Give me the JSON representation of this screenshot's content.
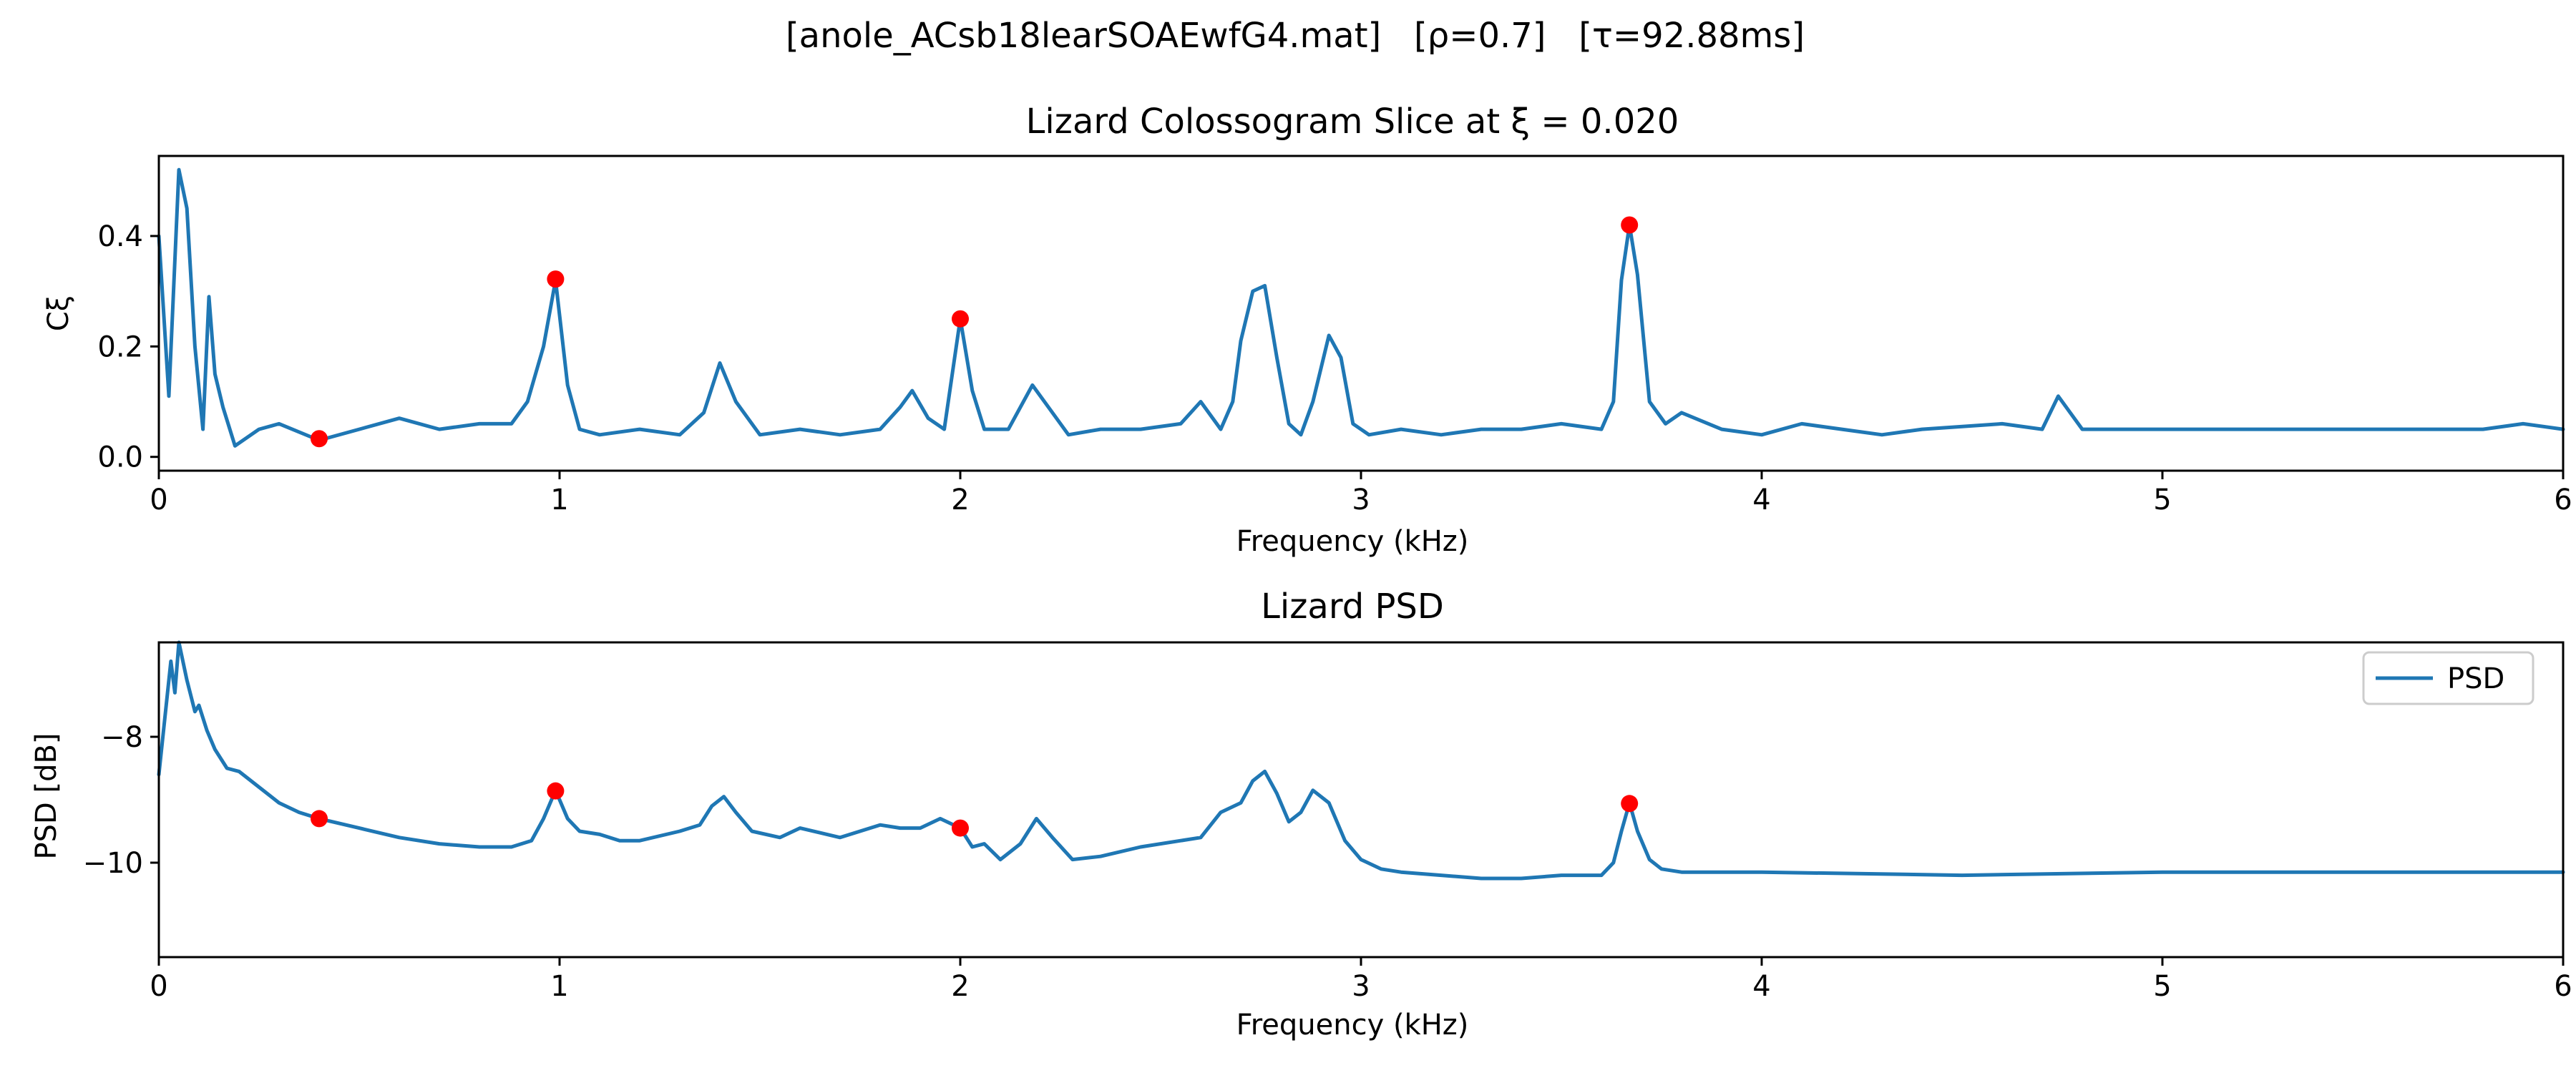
{
  "figure": {
    "suptitle": "[anole_ACsb18learSOAEwfG4.mat]   [ρ=0.7]   [τ=92.88ms]"
  },
  "colors": {
    "line": "#1f77b4",
    "marker": "#ff0000",
    "axes": "#000000",
    "background": "#ffffff"
  },
  "chart_data": [
    {
      "type": "line",
      "title": "Lizard Colossogram Slice at ξ = 0.020",
      "xlabel": "Frequency (kHz)",
      "ylabel": "Cξ",
      "xlim": [
        0,
        6
      ],
      "ylim": [
        -0.025,
        0.545
      ],
      "xticks": [
        0,
        1,
        2,
        3,
        4,
        5,
        6
      ],
      "yticks": [
        0.0,
        0.2,
        0.4
      ],
      "xtick_labels": [
        "0",
        "1",
        "2",
        "3",
        "4",
        "5",
        "6"
      ],
      "ytick_labels": [
        "0.0",
        "0.2",
        "0.4"
      ],
      "grid": false,
      "series": [
        {
          "x": [
            0,
            0.025,
            0.05,
            0.07,
            0.09,
            0.11,
            0.125,
            0.14,
            0.16,
            0.19,
            0.25,
            0.3,
            0.4,
            0.5,
            0.6,
            0.7,
            0.8,
            0.88,
            0.92,
            0.96,
            0.99,
            1.02,
            1.05,
            1.1,
            1.2,
            1.3,
            1.36,
            1.4,
            1.44,
            1.5,
            1.6,
            1.7,
            1.8,
            1.85,
            1.88,
            1.92,
            1.96,
            2.0,
            2.03,
            2.06,
            2.12,
            2.18,
            2.22,
            2.27,
            2.35,
            2.45,
            2.55,
            2.6,
            2.65,
            2.68,
            2.7,
            2.73,
            2.76,
            2.79,
            2.82,
            2.85,
            2.88,
            2.92,
            2.95,
            2.98,
            3.02,
            3.1,
            3.2,
            3.3,
            3.4,
            3.5,
            3.6,
            3.63,
            3.65,
            3.67,
            3.69,
            3.72,
            3.76,
            3.8,
            3.9,
            4.0,
            4.1,
            4.2,
            4.3,
            4.4,
            4.6,
            4.7,
            4.74,
            4.8,
            5.0,
            5.2,
            5.4,
            5.6,
            5.8,
            5.9,
            6.0
          ],
          "y": [
            0.4,
            0.11,
            0.52,
            0.45,
            0.2,
            0.05,
            0.29,
            0.15,
            0.09,
            0.02,
            0.05,
            0.06,
            0.03,
            0.05,
            0.07,
            0.05,
            0.06,
            0.06,
            0.1,
            0.2,
            0.32,
            0.13,
            0.05,
            0.04,
            0.05,
            0.04,
            0.08,
            0.17,
            0.1,
            0.04,
            0.05,
            0.04,
            0.05,
            0.09,
            0.12,
            0.07,
            0.05,
            0.25,
            0.12,
            0.05,
            0.05,
            0.13,
            0.09,
            0.04,
            0.05,
            0.05,
            0.06,
            0.1,
            0.05,
            0.1,
            0.21,
            0.3,
            0.31,
            0.18,
            0.06,
            0.04,
            0.1,
            0.22,
            0.18,
            0.06,
            0.04,
            0.05,
            0.04,
            0.05,
            0.05,
            0.06,
            0.05,
            0.1,
            0.32,
            0.42,
            0.33,
            0.1,
            0.06,
            0.08,
            0.05,
            0.04,
            0.06,
            0.05,
            0.04,
            0.05,
            0.06,
            0.05,
            0.11,
            0.05,
            0.05,
            0.05,
            0.05,
            0.05,
            0.05,
            0.06,
            0.05
          ]
        }
      ],
      "peaks": {
        "x": [
          0.4,
          0.99,
          2.0,
          3.67
        ],
        "y": [
          0.033,
          0.322,
          0.25,
          0.42
        ]
      }
    },
    {
      "type": "line",
      "title": "Lizard PSD",
      "xlabel": "Frequency (kHz)",
      "ylabel": "PSD [dB]",
      "xlim": [
        0,
        6
      ],
      "ylim": [
        -11.5,
        -6.5
      ],
      "xticks": [
        0,
        1,
        2,
        3,
        4,
        5,
        6
      ],
      "yticks": [
        -8,
        -10
      ],
      "xtick_labels": [
        "0",
        "1",
        "2",
        "3",
        "4",
        "5",
        "6"
      ],
      "ytick_labels": [
        "−8",
        "−10"
      ],
      "grid": false,
      "legend": {
        "position": "top-right",
        "entries": [
          "PSD"
        ]
      },
      "series": [
        {
          "name": "PSD",
          "x": [
            0,
            0.015,
            0.03,
            0.04,
            0.05,
            0.07,
            0.09,
            0.1,
            0.12,
            0.14,
            0.17,
            0.2,
            0.25,
            0.3,
            0.35,
            0.4,
            0.5,
            0.6,
            0.7,
            0.8,
            0.88,
            0.93,
            0.96,
            0.99,
            1.02,
            1.05,
            1.1,
            1.15,
            1.2,
            1.3,
            1.35,
            1.38,
            1.41,
            1.44,
            1.48,
            1.55,
            1.6,
            1.7,
            1.75,
            1.8,
            1.85,
            1.9,
            1.95,
            2.0,
            2.03,
            2.06,
            2.1,
            2.15,
            2.19,
            2.23,
            2.28,
            2.35,
            2.45,
            2.55,
            2.6,
            2.65,
            2.7,
            2.73,
            2.76,
            2.79,
            2.82,
            2.85,
            2.88,
            2.92,
            2.96,
            3.0,
            3.05,
            3.1,
            3.2,
            3.3,
            3.4,
            3.5,
            3.6,
            3.63,
            3.65,
            3.67,
            3.69,
            3.72,
            3.75,
            3.8,
            3.9,
            4.0,
            4.5,
            5.0,
            5.5,
            6.0
          ],
          "y": [
            -8.6,
            -7.7,
            -6.8,
            -7.3,
            -6.5,
            -7.1,
            -7.6,
            -7.5,
            -7.9,
            -8.2,
            -8.5,
            -8.55,
            -8.8,
            -9.05,
            -9.2,
            -9.3,
            -9.45,
            -9.6,
            -9.7,
            -9.75,
            -9.75,
            -9.65,
            -9.3,
            -8.85,
            -9.3,
            -9.5,
            -9.55,
            -9.65,
            -9.65,
            -9.5,
            -9.4,
            -9.1,
            -8.95,
            -9.2,
            -9.5,
            -9.6,
            -9.45,
            -9.6,
            -9.5,
            -9.4,
            -9.45,
            -9.45,
            -9.3,
            -9.45,
            -9.75,
            -9.7,
            -9.95,
            -9.7,
            -9.3,
            -9.6,
            -9.95,
            -9.9,
            -9.75,
            -9.65,
            -9.6,
            -9.2,
            -9.05,
            -8.7,
            -8.55,
            -8.9,
            -9.35,
            -9.2,
            -8.85,
            -9.05,
            -9.65,
            -9.95,
            -10.1,
            -10.15,
            -10.2,
            -10.25,
            -10.25,
            -10.2,
            -10.2,
            -10.0,
            -9.5,
            -9.05,
            -9.5,
            -9.95,
            -10.1,
            -10.15,
            -10.15,
            -10.15,
            -10.2,
            -10.15,
            -10.15,
            -10.15
          ]
        }
      ],
      "peaks": {
        "x": [
          0.4,
          0.99,
          2.0,
          3.67
        ],
        "y": [
          -9.3,
          -8.86,
          -9.45,
          -9.06
        ]
      }
    }
  ]
}
